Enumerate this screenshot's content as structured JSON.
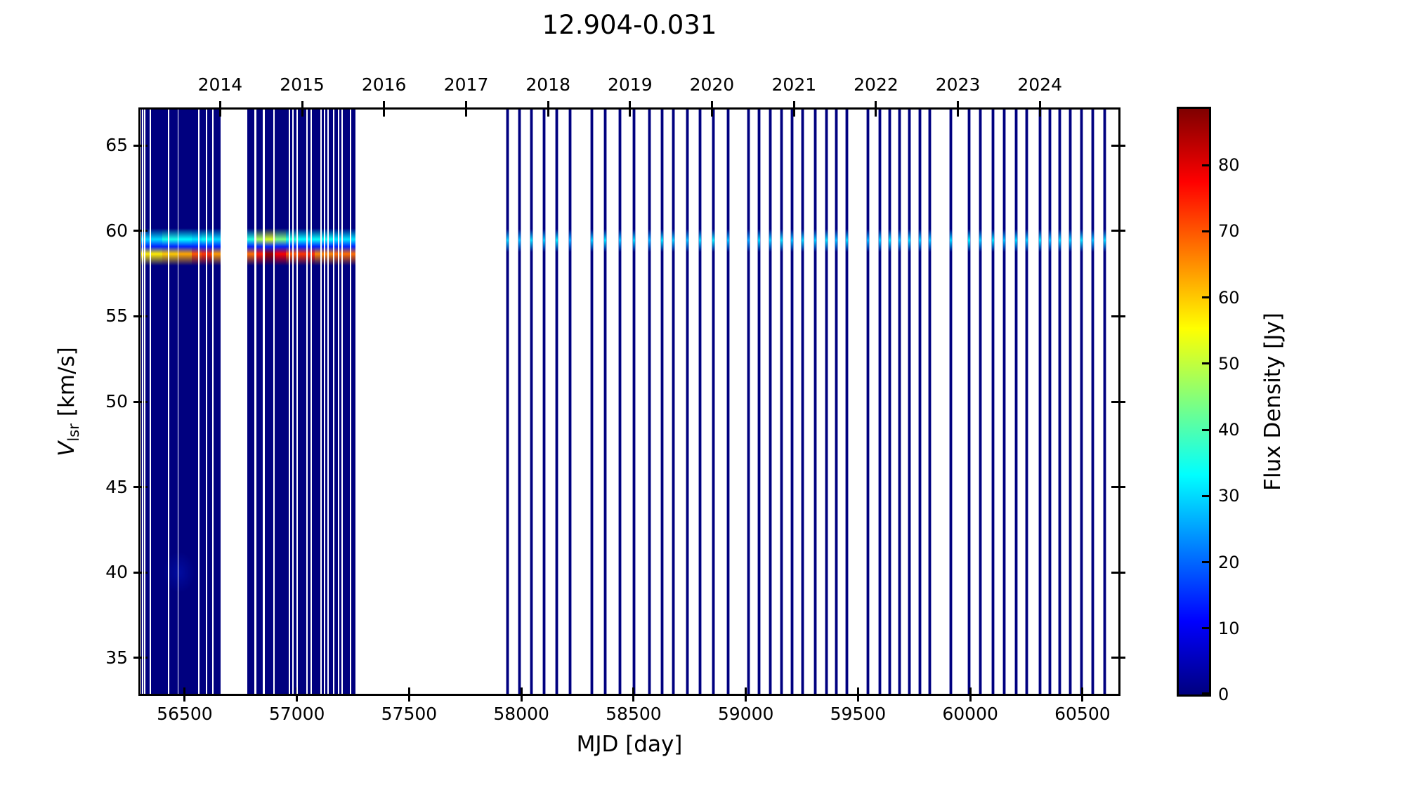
{
  "title": "12.904-0.031",
  "labels": {
    "ylabel_symbol": "V",
    "ylabel_subscript": "lsr",
    "ylabel_units": "[km/s]"
  },
  "chart_data": {
    "type": "heatmap",
    "title": "12.904-0.031",
    "xlabel": "MJD [day]",
    "ylabel": "V_lsr [km/s]",
    "colorbar_label": "Flux Density [Jy]",
    "legend_position": "colorbar-right",
    "grid": false,
    "background_color": "#ffffff",
    "no_data_color": "#ffffff",
    "frame_color": "#000000",
    "x_range_mjd": [
      56303,
      60660
    ],
    "y_range_kms": [
      32.9,
      67.1
    ],
    "flux_range_jy": [
      0,
      88.5
    ],
    "x_ticks_mjd": [
      56500,
      57000,
      57500,
      58000,
      58500,
      59000,
      59500,
      60000,
      60500
    ],
    "y_ticks_kms": [
      35,
      40,
      45,
      50,
      55,
      60,
      65
    ],
    "colorbar_ticks_jy": [
      0,
      10,
      20,
      30,
      40,
      50,
      60,
      70,
      80
    ],
    "year_ticks": [
      {
        "label": "2014",
        "mjd": 56658
      },
      {
        "label": "2015",
        "mjd": 57023
      },
      {
        "label": "2016",
        "mjd": 57388
      },
      {
        "label": "2017",
        "mjd": 57754
      },
      {
        "label": "2018",
        "mjd": 58119
      },
      {
        "label": "2019",
        "mjd": 58484
      },
      {
        "label": "2020",
        "mjd": 58849
      },
      {
        "label": "2021",
        "mjd": 59215
      },
      {
        "label": "2022",
        "mjd": 59580
      },
      {
        "label": "2023",
        "mjd": 59945
      },
      {
        "label": "2024",
        "mjd": 60310
      }
    ],
    "colormap": "jet",
    "colormap_stops": [
      [
        0.0,
        "#00007f"
      ],
      [
        0.125,
        "#0000ff"
      ],
      [
        0.25,
        "#007fff"
      ],
      [
        0.375,
        "#00ffff"
      ],
      [
        0.5,
        "#7fff7f"
      ],
      [
        0.625,
        "#ffff00"
      ],
      [
        0.75,
        "#ff7f00"
      ],
      [
        0.875,
        "#ff0000"
      ],
      [
        1.0,
        "#7f0000"
      ]
    ],
    "maser_features": {
      "upper_band_kms": 59.5,
      "lower_band_kms": 58.65,
      "late_blob_kms": 59.45,
      "interband_flux_jy": 14
    },
    "dense_blocks": [
      {
        "mjd_start": 56306,
        "mjd_end": 56660,
        "segments": [
          [
            56306,
            56400,
            30,
            57
          ],
          [
            56400,
            56470,
            35,
            60
          ],
          [
            56470,
            56530,
            33,
            63
          ],
          [
            56530,
            56575,
            31,
            70
          ],
          [
            56575,
            56620,
            34,
            73
          ],
          [
            56620,
            56660,
            30,
            64
          ]
        ],
        "gaps": [
          [
            56312,
            3
          ],
          [
            56321,
            6
          ],
          [
            56346,
            5
          ],
          [
            56428,
            2
          ],
          [
            56470,
            2
          ],
          [
            56563,
            3
          ],
          [
            56597,
            3
          ],
          [
            56625,
            3
          ]
        ]
      },
      {
        "mjd_start": 56780,
        "mjd_end": 57260,
        "segments": [
          [
            56780,
            56820,
            36,
            68
          ],
          [
            56820,
            56860,
            48,
            75
          ],
          [
            56860,
            56905,
            52,
            86
          ],
          [
            56905,
            56950,
            44,
            78
          ],
          [
            56950,
            57010,
            36,
            70
          ],
          [
            57010,
            57080,
            33,
            73
          ],
          [
            57080,
            57160,
            34,
            66
          ],
          [
            57160,
            57260,
            31,
            68
          ]
        ],
        "gaps": [
          [
            56814,
            8
          ],
          [
            56852,
            8
          ],
          [
            56897,
            3
          ],
          [
            56966,
            3
          ],
          [
            56982,
            3
          ],
          [
            57001,
            3
          ],
          [
            57045,
            3
          ],
          [
            57063,
            3
          ],
          [
            57107,
            3
          ],
          [
            57123,
            3
          ],
          [
            57139,
            3
          ],
          [
            57164,
            3
          ],
          [
            57186,
            3
          ],
          [
            57201,
            3
          ],
          [
            57239,
            3
          ]
        ]
      }
    ],
    "weak_feature": {
      "mjd_start": 56380,
      "mjd_end": 56570,
      "v_center_kms": 40.0,
      "v_halfwidth_kms": 1.6,
      "flux_jy": 4
    },
    "monitoring_epochs": [
      [
        57940,
        29
      ],
      [
        57993,
        27
      ],
      [
        58046,
        30
      ],
      [
        58102,
        28
      ],
      [
        58156,
        31
      ],
      [
        58218,
        25
      ],
      [
        58315,
        28
      ],
      [
        58375,
        30
      ],
      [
        58440,
        27
      ],
      [
        58503,
        29
      ],
      [
        58572,
        26
      ],
      [
        58628,
        30
      ],
      [
        58678,
        28
      ],
      [
        58741,
        27
      ],
      [
        58797,
        29
      ],
      [
        58857,
        31
      ],
      [
        58922,
        27
      ],
      [
        59013,
        25
      ],
      [
        59060,
        29
      ],
      [
        59110,
        28
      ],
      [
        59160,
        30
      ],
      [
        59207,
        27
      ],
      [
        59254,
        29
      ],
      [
        59310,
        28
      ],
      [
        59358,
        30
      ],
      [
        59402,
        27
      ],
      [
        59449,
        29
      ],
      [
        59543,
        26
      ],
      [
        59596,
        28
      ],
      [
        59642,
        30
      ],
      [
        59686,
        27
      ],
      [
        59730,
        29
      ],
      [
        59777,
        28
      ],
      [
        59821,
        27
      ],
      [
        59915,
        29
      ],
      [
        59996,
        31
      ],
      [
        60046,
        28
      ],
      [
        60100,
        30
      ],
      [
        60150,
        27
      ],
      [
        60204,
        29
      ],
      [
        60253,
        28
      ],
      [
        60312,
        30
      ],
      [
        60356,
        27
      ],
      [
        60400,
        29
      ],
      [
        60447,
        28
      ],
      [
        60497,
        30
      ],
      [
        60547,
        27
      ],
      [
        60600,
        29
      ]
    ]
  }
}
